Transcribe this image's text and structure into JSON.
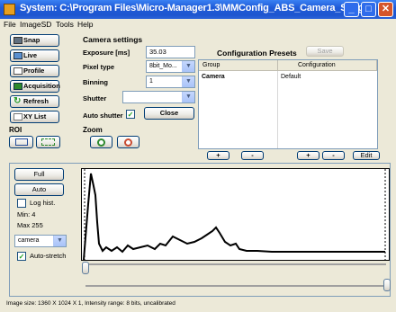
{
  "window": {
    "title": "System: C:\\Program Files\\Micro-Manager1.3\\MMConfig_ABS_Camera_S.cfg"
  },
  "menu": [
    "File",
    "ImageSD",
    "Tools",
    "Help"
  ],
  "left_buttons": [
    "Snap",
    "Live",
    "Profile",
    "Acquisition",
    "Refresh",
    "XY List"
  ],
  "roi": {
    "label": "ROI"
  },
  "zoom": {
    "label": "Zoom"
  },
  "camera": {
    "title": "Camera settings",
    "exposure_label": "Exposure [ms]",
    "exposure_value": "35.03",
    "pixel_type_label": "Pixel type",
    "pixel_type_value": "8bit_Mo...",
    "binning_label": "Binning",
    "binning_value": "1",
    "shutter_label": "Shutter",
    "shutter_value": "",
    "auto_shutter_label": "Auto shutter",
    "auto_shutter_checked": true,
    "close_label": "Close"
  },
  "presets": {
    "title": "Configuration Presets",
    "save_label": "Save",
    "columns": [
      "Group",
      "Configuration"
    ],
    "rows": [
      {
        "group": "Camera",
        "config": "Default"
      }
    ],
    "plus": "+",
    "minus": "-",
    "edit": "Edit"
  },
  "histogram": {
    "full_label": "Full",
    "auto_label": "Auto",
    "log_label": "Log hist.",
    "log_checked": false,
    "min_label": "Min: 4",
    "max_label": "Max 255",
    "channel_value": "camera",
    "autostretch_label": "Auto-stretch",
    "autostretch_checked": true
  },
  "status": "Image size: 1360 X 1024 X 1, Intensity range: 8 bits, uncalibrated"
}
